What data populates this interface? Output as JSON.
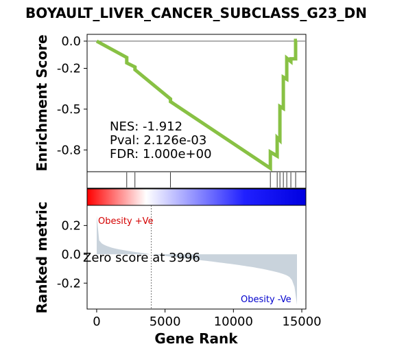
{
  "chart_data": {
    "type": "line",
    "title": "BOYAULT_LIVER_CANCER_SUBCLASS_G23_DN",
    "xlabel": "Gene Rank",
    "ylabel_top": "Enrichment Score",
    "ylabel_bottom": "Ranked metric",
    "xlim": [
      -700,
      15300
    ],
    "x_ticks": [
      0,
      5000,
      10000,
      15000
    ],
    "x_tick_labels": [
      "0",
      "5000",
      "10000",
      "15000"
    ],
    "es_ylim": [
      -0.96,
      0.05
    ],
    "es_ticks": [
      0.0,
      -0.2,
      -0.5,
      -0.8
    ],
    "es_tick_labels": [
      "0.0",
      "-0.2",
      "-0.5",
      "-0.8"
    ],
    "rank_ylim": [
      -0.38,
      0.34
    ],
    "rank_ticks": [
      0.2,
      0.0,
      -0.2
    ],
    "rank_tick_labels": [
      "0.2",
      "0.0",
      "-0.2"
    ],
    "line_color": "#88c144",
    "fill_color": "#c9d3dc",
    "es_curve": {
      "x": [
        0,
        2200,
        2200,
        2800,
        2800,
        5400,
        5400,
        12700,
        12700,
        13200,
        13200,
        13400,
        13400,
        13650,
        13650,
        13900,
        13900,
        14200,
        14200,
        14550,
        14550,
        14650
      ],
      "y": [
        0.0,
        -0.12,
        -0.16,
        -0.19,
        -0.21,
        -0.425,
        -0.445,
        -0.935,
        -0.815,
        -0.845,
        -0.71,
        -0.73,
        -0.48,
        -0.495,
        -0.265,
        -0.28,
        -0.125,
        -0.15,
        -0.13,
        -0.13,
        0.005,
        0.005
      ]
    },
    "hit_positions": [
      2200,
      2800,
      5400,
      12700,
      13200,
      13400,
      13650,
      13900,
      14200,
      14550
    ],
    "zero_cross": 3996,
    "n_genes": 14650,
    "stats": {
      "nes": "NES: -1.912",
      "pval": "Pval: 2.126e-03",
      "fdr": "FDR: 1.000e+00"
    },
    "annotations": {
      "pos_label": "Obesity +Ve",
      "neg_label": "Obesity -Ve",
      "zero_label": "Zero score at 3996"
    },
    "grid": false
  }
}
